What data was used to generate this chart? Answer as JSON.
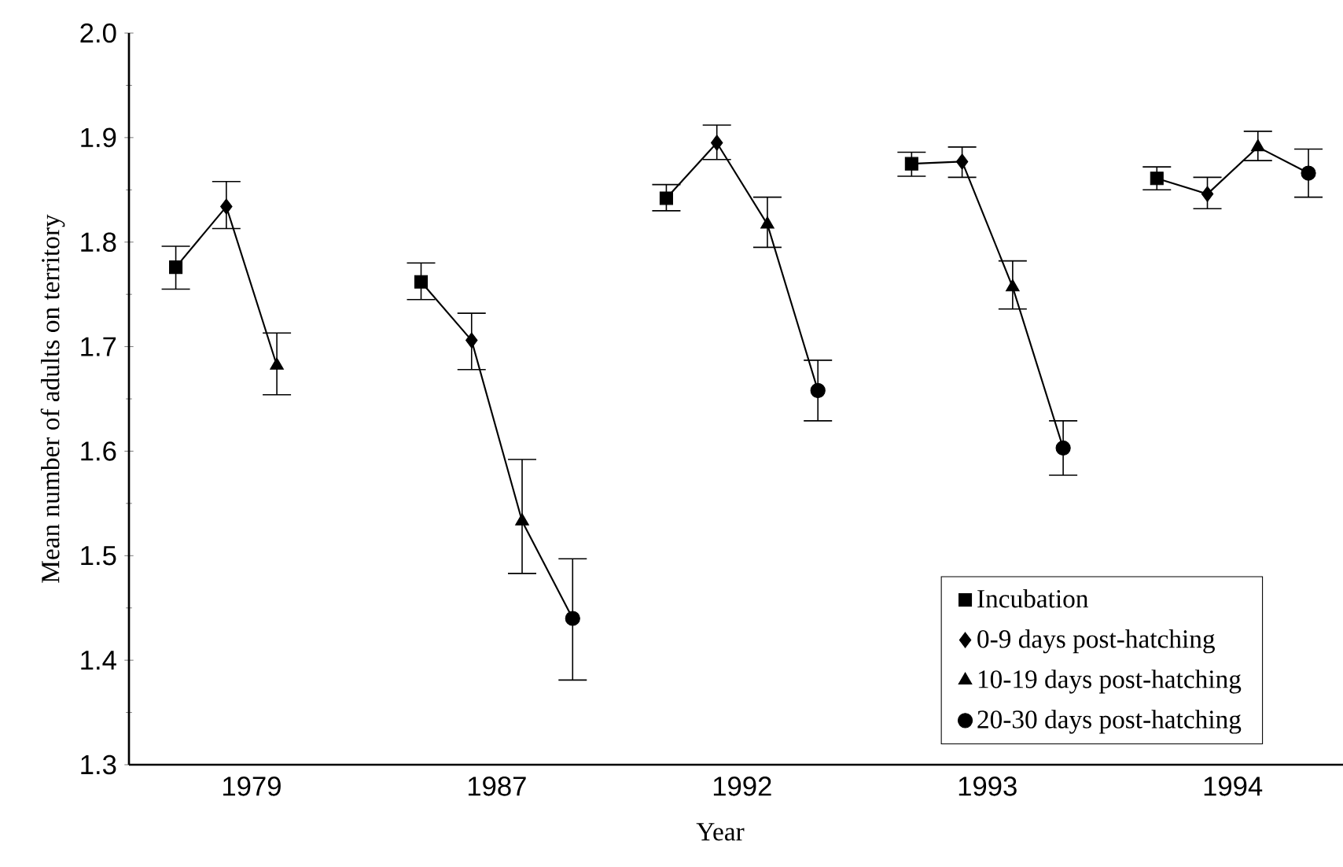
{
  "chart_data": {
    "type": "scatter",
    "xlabel": "Year",
    "ylabel": "Mean number of adults on territory",
    "categories": [
      "1979",
      "1987",
      "1992",
      "1993",
      "1994"
    ],
    "ylim": [
      1.3,
      2.0
    ],
    "yticks": [
      1.3,
      1.4,
      1.5,
      1.6,
      1.7,
      1.8,
      1.9,
      {
        "value": 2.0,
        "label": "2.0"
      }
    ],
    "legend": "bottom right",
    "series": [
      {
        "name": "Incubation",
        "color": "#000000",
        "marker": "square",
        "values": [
          1.776,
          1.762,
          1.842,
          1.875,
          1.861
        ],
        "errors": [
          [
            1.755,
            1.796
          ],
          [
            1.745,
            1.78
          ],
          [
            1.83,
            1.855
          ],
          [
            1.863,
            1.886
          ],
          [
            1.85,
            1.872
          ]
        ]
      },
      {
        "name": "0-9 days post-hatching",
        "color": "#000000",
        "marker": "diamond",
        "values": [
          1.834,
          1.706,
          1.895,
          1.877,
          1.846
        ],
        "errors": [
          [
            1.813,
            1.858
          ],
          [
            1.678,
            1.732
          ],
          [
            1.879,
            1.912
          ],
          [
            1.862,
            1.891
          ],
          [
            1.832,
            1.862
          ]
        ]
      },
      {
        "name": "10-19 days post-hatching",
        "color": "#000000",
        "marker": "triangle",
        "values": [
          1.682,
          1.533,
          1.817,
          1.757,
          1.891
        ],
        "errors": [
          [
            1.654,
            1.713
          ],
          [
            1.483,
            1.592
          ],
          [
            1.795,
            1.843
          ],
          [
            1.736,
            1.782
          ],
          [
            1.878,
            1.906
          ]
        ]
      },
      {
        "name": "20-30 days post-hatching",
        "color": "#000000",
        "marker": "circle",
        "values": [
          null,
          1.44,
          1.658,
          1.603,
          1.866
        ],
        "errors": [
          null,
          [
            1.381,
            1.497
          ],
          [
            1.629,
            1.687
          ],
          [
            1.577,
            1.629
          ],
          [
            1.843,
            1.889
          ]
        ]
      }
    ]
  }
}
